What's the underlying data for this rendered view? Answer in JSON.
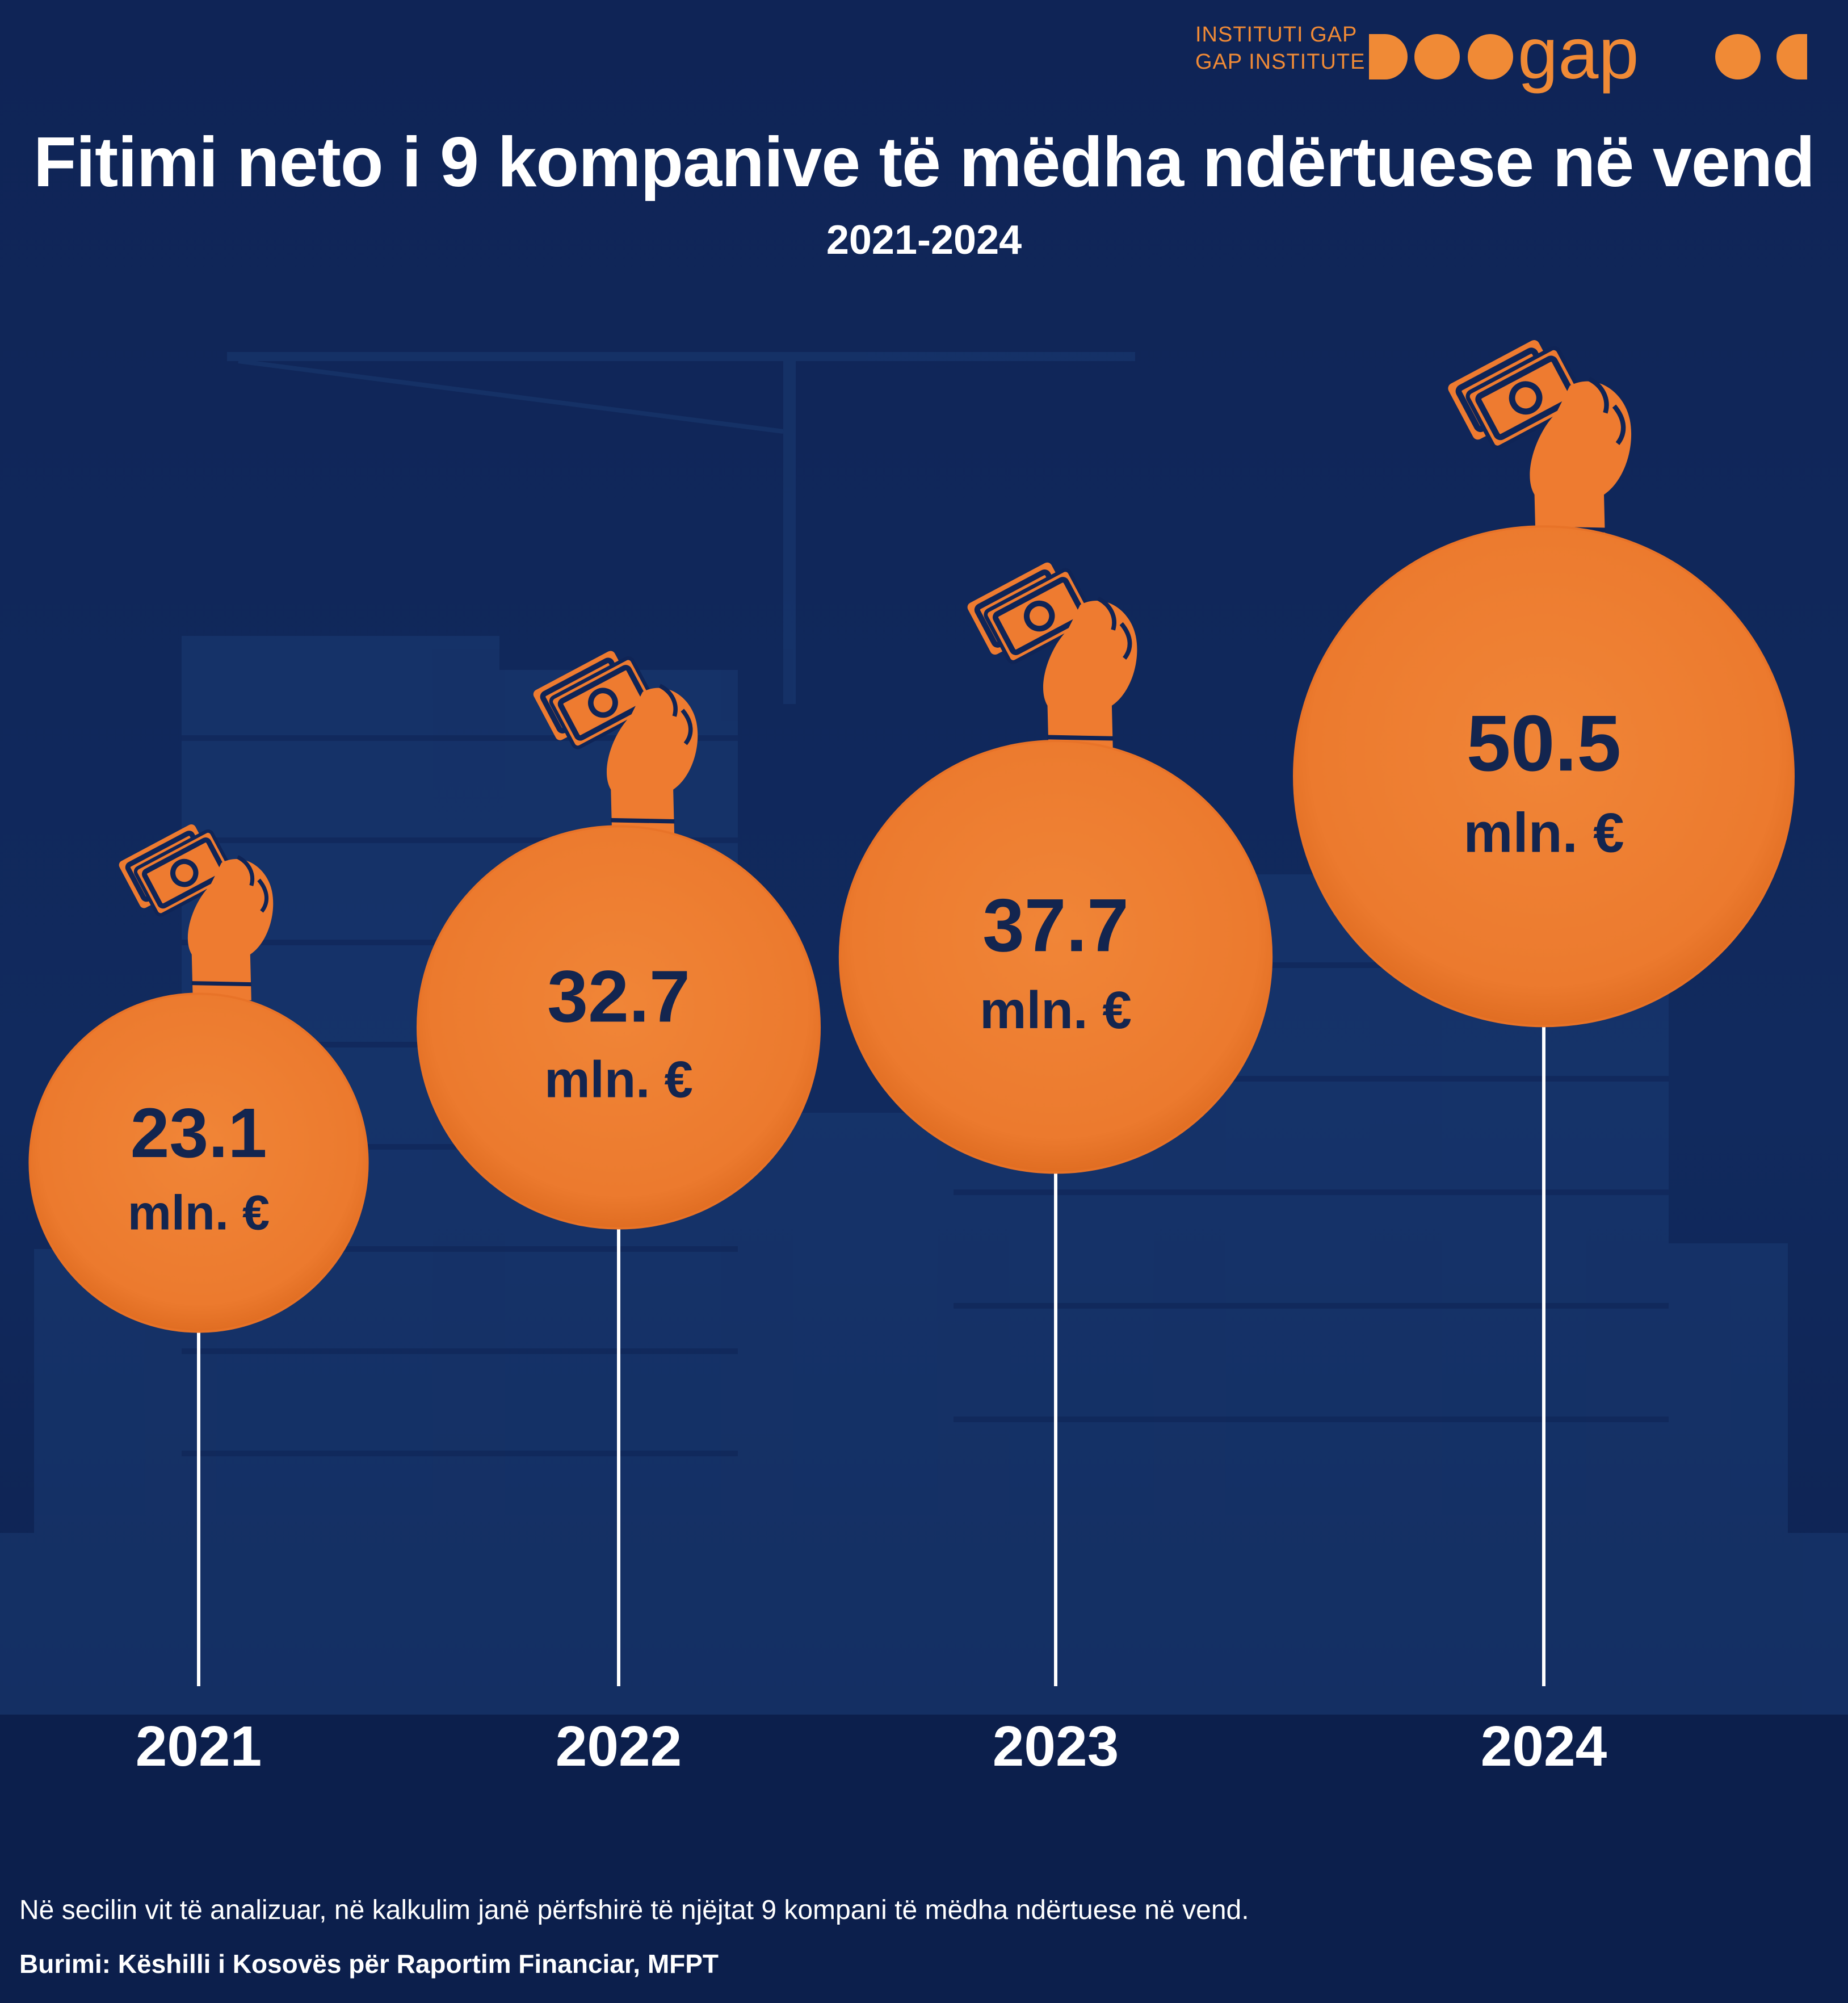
{
  "logo": {
    "line1": "INSTITUTI GAP",
    "line2": "GAP INSTITUTE",
    "wordmark": "gap",
    "color": "#f08a36"
  },
  "title": "Fitimi neto i 9 kompanive të mëdha ndërtuese në vend",
  "subtitle": "2021-2024",
  "chart_data": {
    "type": "bubble",
    "categories": [
      "2021",
      "2022",
      "2023",
      "2024"
    ],
    "values": [
      23.1,
      32.7,
      37.7,
      50.5
    ],
    "value_labels": [
      "23.1",
      "32.7",
      "37.7",
      "50.5"
    ],
    "unit_label": "mln. €",
    "grid": false,
    "legend": "none",
    "colors": {
      "bubble": "#ee7b30",
      "value_text": "#13254f",
      "stem": "#ffffff",
      "background": "#0f2456"
    },
    "icon": "hand-with-money-icon"
  },
  "footer": {
    "note": "Në secilin vit të analizuar, në kalkulim janë përfshirë të njëjtat 9 kompani të mëdha ndërtuese në vend.",
    "source": "Burimi: Këshilli i Kosovës për Raportim Financiar, MFPT"
  }
}
